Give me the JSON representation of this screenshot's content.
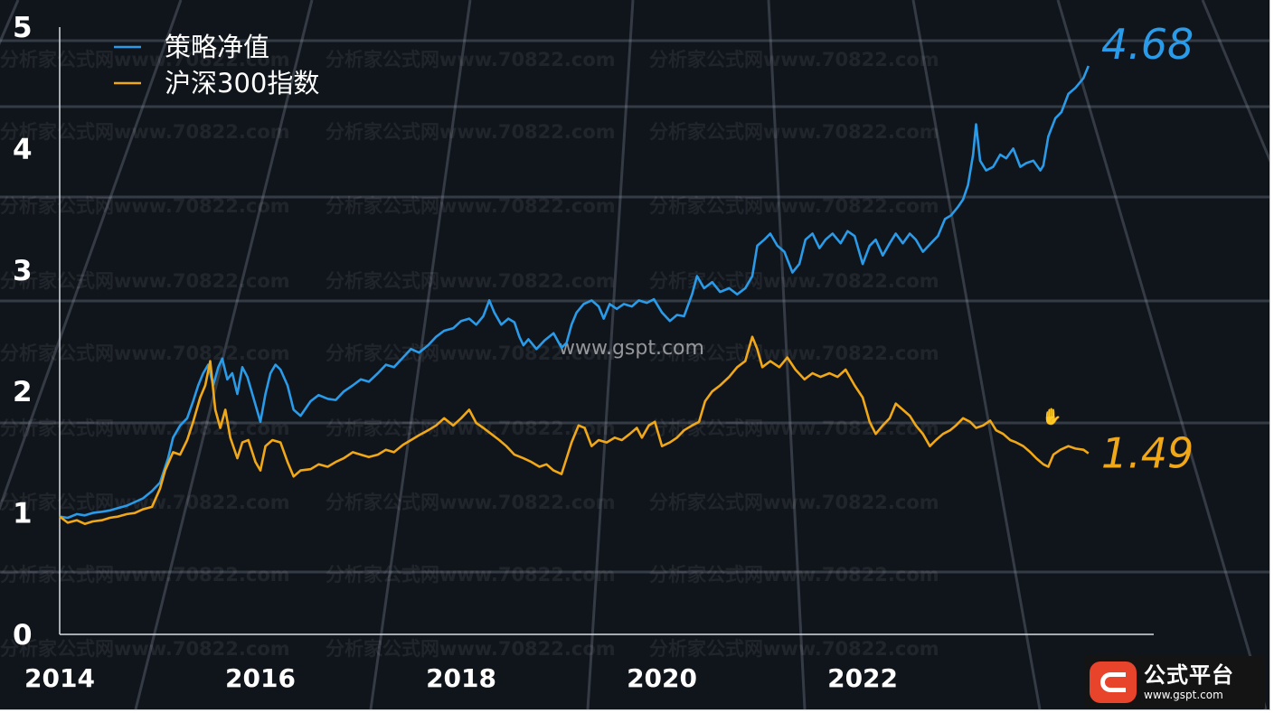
{
  "chart_data": {
    "type": "line",
    "title": "",
    "xlabel": "",
    "ylabel": "",
    "xlim": [
      2014.0,
      2024.9
    ],
    "ylim": [
      0,
      5
    ],
    "xticks": [
      "2014",
      "2016",
      "2018",
      "2020",
      "2022"
    ],
    "yticks": [
      "0",
      "1",
      "2",
      "3",
      "4",
      "5"
    ],
    "legend": "top-left",
    "series": [
      {
        "name": "策略净值",
        "color": "#2a9be8",
        "end_label": "4.68",
        "points": [
          [
            2014.0,
            0.97
          ],
          [
            2014.08,
            0.96
          ],
          [
            2014.17,
            0.99
          ],
          [
            2014.25,
            0.98
          ],
          [
            2014.33,
            1.0
          ],
          [
            2014.42,
            1.01
          ],
          [
            2014.5,
            1.02
          ],
          [
            2014.58,
            1.04
          ],
          [
            2014.67,
            1.06
          ],
          [
            2014.75,
            1.09
          ],
          [
            2014.83,
            1.12
          ],
          [
            2014.92,
            1.18
          ],
          [
            2015.0,
            1.25
          ],
          [
            2015.08,
            1.45
          ],
          [
            2015.13,
            1.62
          ],
          [
            2015.2,
            1.72
          ],
          [
            2015.27,
            1.78
          ],
          [
            2015.33,
            1.92
          ],
          [
            2015.38,
            2.05
          ],
          [
            2015.43,
            2.15
          ],
          [
            2015.48,
            2.22
          ],
          [
            2015.53,
            2.05
          ],
          [
            2015.58,
            2.2
          ],
          [
            2015.62,
            2.27
          ],
          [
            2015.67,
            2.1
          ],
          [
            2015.72,
            2.15
          ],
          [
            2015.77,
            1.98
          ],
          [
            2015.82,
            2.2
          ],
          [
            2015.87,
            2.12
          ],
          [
            2015.93,
            1.95
          ],
          [
            2016.0,
            1.75
          ],
          [
            2016.05,
            1.98
          ],
          [
            2016.1,
            2.15
          ],
          [
            2016.15,
            2.22
          ],
          [
            2016.2,
            2.18
          ],
          [
            2016.27,
            2.05
          ],
          [
            2016.33,
            1.85
          ],
          [
            2016.4,
            1.8
          ],
          [
            2016.5,
            1.92
          ],
          [
            2016.58,
            1.97
          ],
          [
            2016.67,
            1.94
          ],
          [
            2016.75,
            1.93
          ],
          [
            2016.83,
            2.0
          ],
          [
            2016.92,
            2.05
          ],
          [
            2017.0,
            2.1
          ],
          [
            2017.08,
            2.08
          ],
          [
            2017.17,
            2.15
          ],
          [
            2017.25,
            2.22
          ],
          [
            2017.33,
            2.2
          ],
          [
            2017.42,
            2.28
          ],
          [
            2017.5,
            2.35
          ],
          [
            2017.58,
            2.32
          ],
          [
            2017.67,
            2.38
          ],
          [
            2017.75,
            2.45
          ],
          [
            2017.83,
            2.5
          ],
          [
            2017.92,
            2.52
          ],
          [
            2018.0,
            2.58
          ],
          [
            2018.08,
            2.6
          ],
          [
            2018.15,
            2.55
          ],
          [
            2018.22,
            2.62
          ],
          [
            2018.28,
            2.75
          ],
          [
            2018.33,
            2.65
          ],
          [
            2018.4,
            2.55
          ],
          [
            2018.47,
            2.6
          ],
          [
            2018.53,
            2.57
          ],
          [
            2018.58,
            2.45
          ],
          [
            2018.62,
            2.38
          ],
          [
            2018.67,
            2.43
          ],
          [
            2018.75,
            2.35
          ],
          [
            2018.83,
            2.42
          ],
          [
            2018.92,
            2.48
          ],
          [
            2019.0,
            2.36
          ],
          [
            2019.05,
            2.4
          ],
          [
            2019.1,
            2.55
          ],
          [
            2019.15,
            2.65
          ],
          [
            2019.22,
            2.72
          ],
          [
            2019.3,
            2.75
          ],
          [
            2019.37,
            2.7
          ],
          [
            2019.42,
            2.6
          ],
          [
            2019.48,
            2.72
          ],
          [
            2019.55,
            2.68
          ],
          [
            2019.62,
            2.72
          ],
          [
            2019.7,
            2.7
          ],
          [
            2019.77,
            2.75
          ],
          [
            2019.85,
            2.73
          ],
          [
            2019.92,
            2.76
          ],
          [
            2020.0,
            2.65
          ],
          [
            2020.08,
            2.58
          ],
          [
            2020.15,
            2.63
          ],
          [
            2020.22,
            2.62
          ],
          [
            2020.3,
            2.8
          ],
          [
            2020.35,
            2.95
          ],
          [
            2020.42,
            2.85
          ],
          [
            2020.5,
            2.9
          ],
          [
            2020.58,
            2.82
          ],
          [
            2020.67,
            2.85
          ],
          [
            2020.75,
            2.8
          ],
          [
            2020.83,
            2.85
          ],
          [
            2020.9,
            2.95
          ],
          [
            2020.95,
            3.2
          ],
          [
            2021.02,
            3.25
          ],
          [
            2021.08,
            3.3
          ],
          [
            2021.15,
            3.2
          ],
          [
            2021.22,
            3.15
          ],
          [
            2021.3,
            2.98
          ],
          [
            2021.37,
            3.05
          ],
          [
            2021.43,
            3.25
          ],
          [
            2021.5,
            3.3
          ],
          [
            2021.57,
            3.18
          ],
          [
            2021.63,
            3.25
          ],
          [
            2021.7,
            3.3
          ],
          [
            2021.78,
            3.22
          ],
          [
            2021.85,
            3.32
          ],
          [
            2021.92,
            3.28
          ],
          [
            2022.0,
            3.05
          ],
          [
            2022.07,
            3.2
          ],
          [
            2022.13,
            3.25
          ],
          [
            2022.2,
            3.12
          ],
          [
            2022.27,
            3.22
          ],
          [
            2022.33,
            3.3
          ],
          [
            2022.4,
            3.22
          ],
          [
            2022.47,
            3.3
          ],
          [
            2022.53,
            3.25
          ],
          [
            2022.6,
            3.15
          ],
          [
            2022.68,
            3.22
          ],
          [
            2022.75,
            3.28
          ],
          [
            2022.82,
            3.42
          ],
          [
            2022.88,
            3.45
          ],
          [
            2022.95,
            3.52
          ],
          [
            2023.0,
            3.58
          ],
          [
            2023.05,
            3.7
          ],
          [
            2023.1,
            3.95
          ],
          [
            2023.13,
            4.2
          ],
          [
            2023.17,
            3.9
          ],
          [
            2023.23,
            3.82
          ],
          [
            2023.3,
            3.85
          ],
          [
            2023.37,
            3.95
          ],
          [
            2023.43,
            3.92
          ],
          [
            2023.5,
            4.0
          ],
          [
            2023.57,
            3.85
          ],
          [
            2023.63,
            3.88
          ],
          [
            2023.7,
            3.9
          ],
          [
            2023.77,
            3.82
          ],
          [
            2023.8,
            3.86
          ],
          [
            2023.85,
            4.1
          ],
          [
            2023.92,
            4.25
          ],
          [
            2023.98,
            4.3
          ],
          [
            2024.05,
            4.45
          ],
          [
            2024.12,
            4.5
          ],
          [
            2024.2,
            4.58
          ],
          [
            2024.25,
            4.68
          ]
        ]
      },
      {
        "name": "沪深300指数",
        "color": "#f0a818",
        "end_label": "1.49",
        "points": [
          [
            2014.0,
            0.97
          ],
          [
            2014.08,
            0.92
          ],
          [
            2014.17,
            0.94
          ],
          [
            2014.25,
            0.91
          ],
          [
            2014.33,
            0.93
          ],
          [
            2014.42,
            0.94
          ],
          [
            2014.5,
            0.96
          ],
          [
            2014.58,
            0.97
          ],
          [
            2014.67,
            0.99
          ],
          [
            2014.75,
            1.0
          ],
          [
            2014.83,
            1.03
          ],
          [
            2014.92,
            1.05
          ],
          [
            2015.0,
            1.2
          ],
          [
            2015.05,
            1.35
          ],
          [
            2015.13,
            1.5
          ],
          [
            2015.2,
            1.48
          ],
          [
            2015.27,
            1.6
          ],
          [
            2015.33,
            1.75
          ],
          [
            2015.4,
            1.95
          ],
          [
            2015.45,
            2.05
          ],
          [
            2015.5,
            2.25
          ],
          [
            2015.55,
            1.85
          ],
          [
            2015.6,
            1.7
          ],
          [
            2015.65,
            1.85
          ],
          [
            2015.7,
            1.62
          ],
          [
            2015.77,
            1.45
          ],
          [
            2015.82,
            1.58
          ],
          [
            2015.88,
            1.6
          ],
          [
            2015.95,
            1.42
          ],
          [
            2016.0,
            1.35
          ],
          [
            2016.05,
            1.55
          ],
          [
            2016.12,
            1.6
          ],
          [
            2016.2,
            1.58
          ],
          [
            2016.27,
            1.42
          ],
          [
            2016.33,
            1.3
          ],
          [
            2016.4,
            1.35
          ],
          [
            2016.5,
            1.36
          ],
          [
            2016.58,
            1.4
          ],
          [
            2016.67,
            1.38
          ],
          [
            2016.75,
            1.42
          ],
          [
            2016.83,
            1.45
          ],
          [
            2016.92,
            1.5
          ],
          [
            2017.0,
            1.48
          ],
          [
            2017.08,
            1.46
          ],
          [
            2017.17,
            1.48
          ],
          [
            2017.25,
            1.52
          ],
          [
            2017.33,
            1.5
          ],
          [
            2017.42,
            1.56
          ],
          [
            2017.5,
            1.6
          ],
          [
            2017.58,
            1.64
          ],
          [
            2017.67,
            1.68
          ],
          [
            2017.75,
            1.72
          ],
          [
            2017.83,
            1.78
          ],
          [
            2017.92,
            1.72
          ],
          [
            2018.0,
            1.78
          ],
          [
            2018.08,
            1.85
          ],
          [
            2018.15,
            1.74
          ],
          [
            2018.22,
            1.7
          ],
          [
            2018.3,
            1.65
          ],
          [
            2018.38,
            1.6
          ],
          [
            2018.45,
            1.55
          ],
          [
            2018.53,
            1.48
          ],
          [
            2018.62,
            1.45
          ],
          [
            2018.7,
            1.42
          ],
          [
            2018.78,
            1.38
          ],
          [
            2018.85,
            1.4
          ],
          [
            2018.92,
            1.35
          ],
          [
            2019.0,
            1.32
          ],
          [
            2019.05,
            1.45
          ],
          [
            2019.1,
            1.58
          ],
          [
            2019.17,
            1.72
          ],
          [
            2019.23,
            1.7
          ],
          [
            2019.3,
            1.55
          ],
          [
            2019.37,
            1.6
          ],
          [
            2019.45,
            1.58
          ],
          [
            2019.53,
            1.62
          ],
          [
            2019.6,
            1.6
          ],
          [
            2019.68,
            1.65
          ],
          [
            2019.75,
            1.7
          ],
          [
            2019.8,
            1.62
          ],
          [
            2019.87,
            1.72
          ],
          [
            2019.93,
            1.75
          ],
          [
            2020.0,
            1.55
          ],
          [
            2020.08,
            1.58
          ],
          [
            2020.15,
            1.62
          ],
          [
            2020.22,
            1.68
          ],
          [
            2020.3,
            1.72
          ],
          [
            2020.37,
            1.75
          ],
          [
            2020.43,
            1.92
          ],
          [
            2020.5,
            2.0
          ],
          [
            2020.58,
            2.05
          ],
          [
            2020.67,
            2.12
          ],
          [
            2020.75,
            2.2
          ],
          [
            2020.83,
            2.25
          ],
          [
            2020.9,
            2.45
          ],
          [
            2020.95,
            2.35
          ],
          [
            2021.0,
            2.2
          ],
          [
            2021.08,
            2.25
          ],
          [
            2021.17,
            2.2
          ],
          [
            2021.25,
            2.28
          ],
          [
            2021.33,
            2.18
          ],
          [
            2021.42,
            2.1
          ],
          [
            2021.5,
            2.15
          ],
          [
            2021.58,
            2.12
          ],
          [
            2021.67,
            2.15
          ],
          [
            2021.75,
            2.12
          ],
          [
            2021.83,
            2.18
          ],
          [
            2021.92,
            2.05
          ],
          [
            2022.0,
            1.95
          ],
          [
            2022.07,
            1.75
          ],
          [
            2022.13,
            1.65
          ],
          [
            2022.2,
            1.72
          ],
          [
            2022.27,
            1.78
          ],
          [
            2022.33,
            1.9
          ],
          [
            2022.4,
            1.85
          ],
          [
            2022.47,
            1.8
          ],
          [
            2022.53,
            1.72
          ],
          [
            2022.6,
            1.65
          ],
          [
            2022.67,
            1.55
          ],
          [
            2022.73,
            1.6
          ],
          [
            2022.8,
            1.65
          ],
          [
            2022.87,
            1.68
          ],
          [
            2022.93,
            1.72
          ],
          [
            2023.0,
            1.78
          ],
          [
            2023.07,
            1.75
          ],
          [
            2023.13,
            1.7
          ],
          [
            2023.2,
            1.72
          ],
          [
            2023.27,
            1.76
          ],
          [
            2023.33,
            1.68
          ],
          [
            2023.4,
            1.65
          ],
          [
            2023.47,
            1.6
          ],
          [
            2023.53,
            1.58
          ],
          [
            2023.6,
            1.55
          ],
          [
            2023.67,
            1.5
          ],
          [
            2023.73,
            1.45
          ],
          [
            2023.8,
            1.4
          ],
          [
            2023.85,
            1.38
          ],
          [
            2023.9,
            1.48
          ],
          [
            2023.97,
            1.52
          ],
          [
            2024.05,
            1.55
          ],
          [
            2024.12,
            1.53
          ],
          [
            2024.2,
            1.52
          ],
          [
            2024.25,
            1.49
          ]
        ]
      }
    ]
  },
  "watermark": {
    "text": "分析家公式网www.70822.com",
    "site": "www.gspt.com"
  },
  "logo": {
    "name": "公式平台",
    "url": "www.gspt.com"
  }
}
